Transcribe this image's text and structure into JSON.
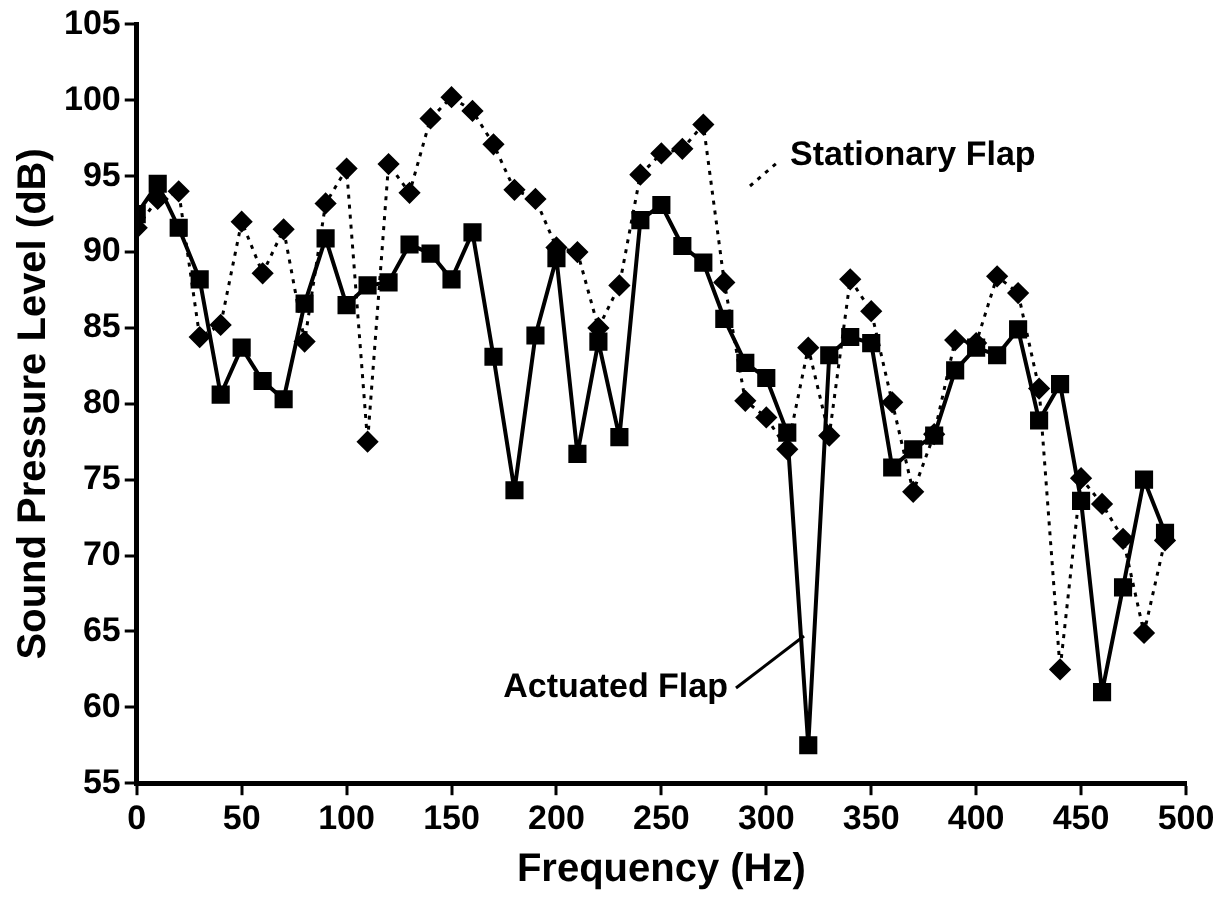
{
  "chart_data": {
    "type": "line",
    "xlabel": "Frequency (Hz)",
    "ylabel": "Sound Pressure Level (dB)",
    "x": [
      0,
      10,
      20,
      30,
      40,
      50,
      60,
      70,
      80,
      90,
      100,
      110,
      120,
      130,
      140,
      150,
      160,
      170,
      180,
      190,
      200,
      210,
      220,
      230,
      240,
      250,
      260,
      270,
      280,
      290,
      300,
      310,
      320,
      330,
      340,
      350,
      360,
      370,
      380,
      390,
      400,
      410,
      420,
      430,
      440,
      450,
      460,
      470,
      480,
      490
    ],
    "series": [
      {
        "name": "Stationary Flap",
        "color": "#000000",
        "marker": "diamond",
        "line_style": "dotted",
        "values": [
          91.6,
          93.5,
          94.0,
          84.4,
          85.2,
          92.0,
          88.6,
          91.5,
          84.1,
          93.2,
          95.5,
          77.5,
          95.8,
          93.9,
          98.8,
          100.2,
          99.3,
          97.1,
          94.1,
          93.5,
          90.3,
          90.0,
          85.0,
          87.8,
          95.1,
          96.5,
          96.8,
          98.4,
          88.0,
          80.2,
          79.1,
          77.0,
          83.7,
          77.9,
          88.2,
          86.1,
          80.1,
          74.2,
          78.0,
          84.2,
          84.0,
          88.4,
          87.3,
          81.0,
          62.5,
          75.1,
          73.4,
          71.1,
          64.9,
          71.0
        ]
      },
      {
        "name": "Actuated Flap",
        "color": "#000000",
        "marker": "square",
        "line_style": "solid",
        "values": [
          92.5,
          94.5,
          91.6,
          88.2,
          80.6,
          83.7,
          81.5,
          80.3,
          86.6,
          90.9,
          86.5,
          87.8,
          88.0,
          90.5,
          89.9,
          88.2,
          91.3,
          83.1,
          74.3,
          84.5,
          89.6,
          76.7,
          84.1,
          77.8,
          92.1,
          93.1,
          90.4,
          89.3,
          85.6,
          82.7,
          81.7,
          78.1,
          57.5,
          83.2,
          84.4,
          84.0,
          75.8,
          77.0,
          77.9,
          82.2,
          83.7,
          83.2,
          84.9,
          78.9,
          81.3,
          73.6,
          61.0,
          67.9,
          75.0,
          71.5
        ]
      }
    ],
    "xlim": [
      0,
      500
    ],
    "xticks": [
      0,
      50,
      100,
      150,
      200,
      250,
      300,
      350,
      400,
      450,
      500
    ],
    "ylim": [
      55,
      105
    ],
    "yticks": [
      55,
      60,
      65,
      70,
      75,
      80,
      85,
      90,
      95,
      100,
      105
    ],
    "grid": false
  }
}
